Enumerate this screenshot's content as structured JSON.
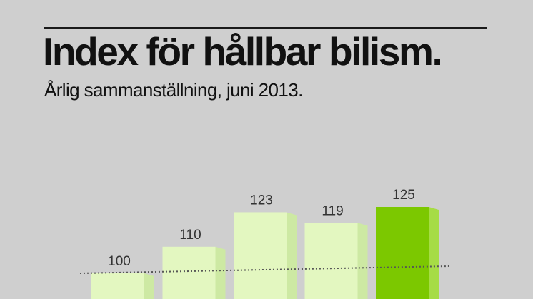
{
  "header": {
    "title": "Index för hållbar bilism.",
    "subtitle": "Årlig sammanställning, juni 2013."
  },
  "colors": {
    "background": "#cfcfcf",
    "bar_face": "#e3f7c0",
    "bar_side": "#cde9a3",
    "highlight_face": "#7cc800",
    "highlight_side": "#a6dc45",
    "baseline_dots": "#555555"
  },
  "chart_data": {
    "type": "bar",
    "title": "Index för hållbar bilism.",
    "subtitle": "Årlig sammanställning, juni 2013.",
    "values": [
      100,
      110,
      123,
      119,
      125
    ],
    "labels": [
      "100",
      "110",
      "123",
      "119",
      "125"
    ],
    "highlight_index": 4,
    "reference_line": 100,
    "grid": false,
    "legend": "none"
  }
}
